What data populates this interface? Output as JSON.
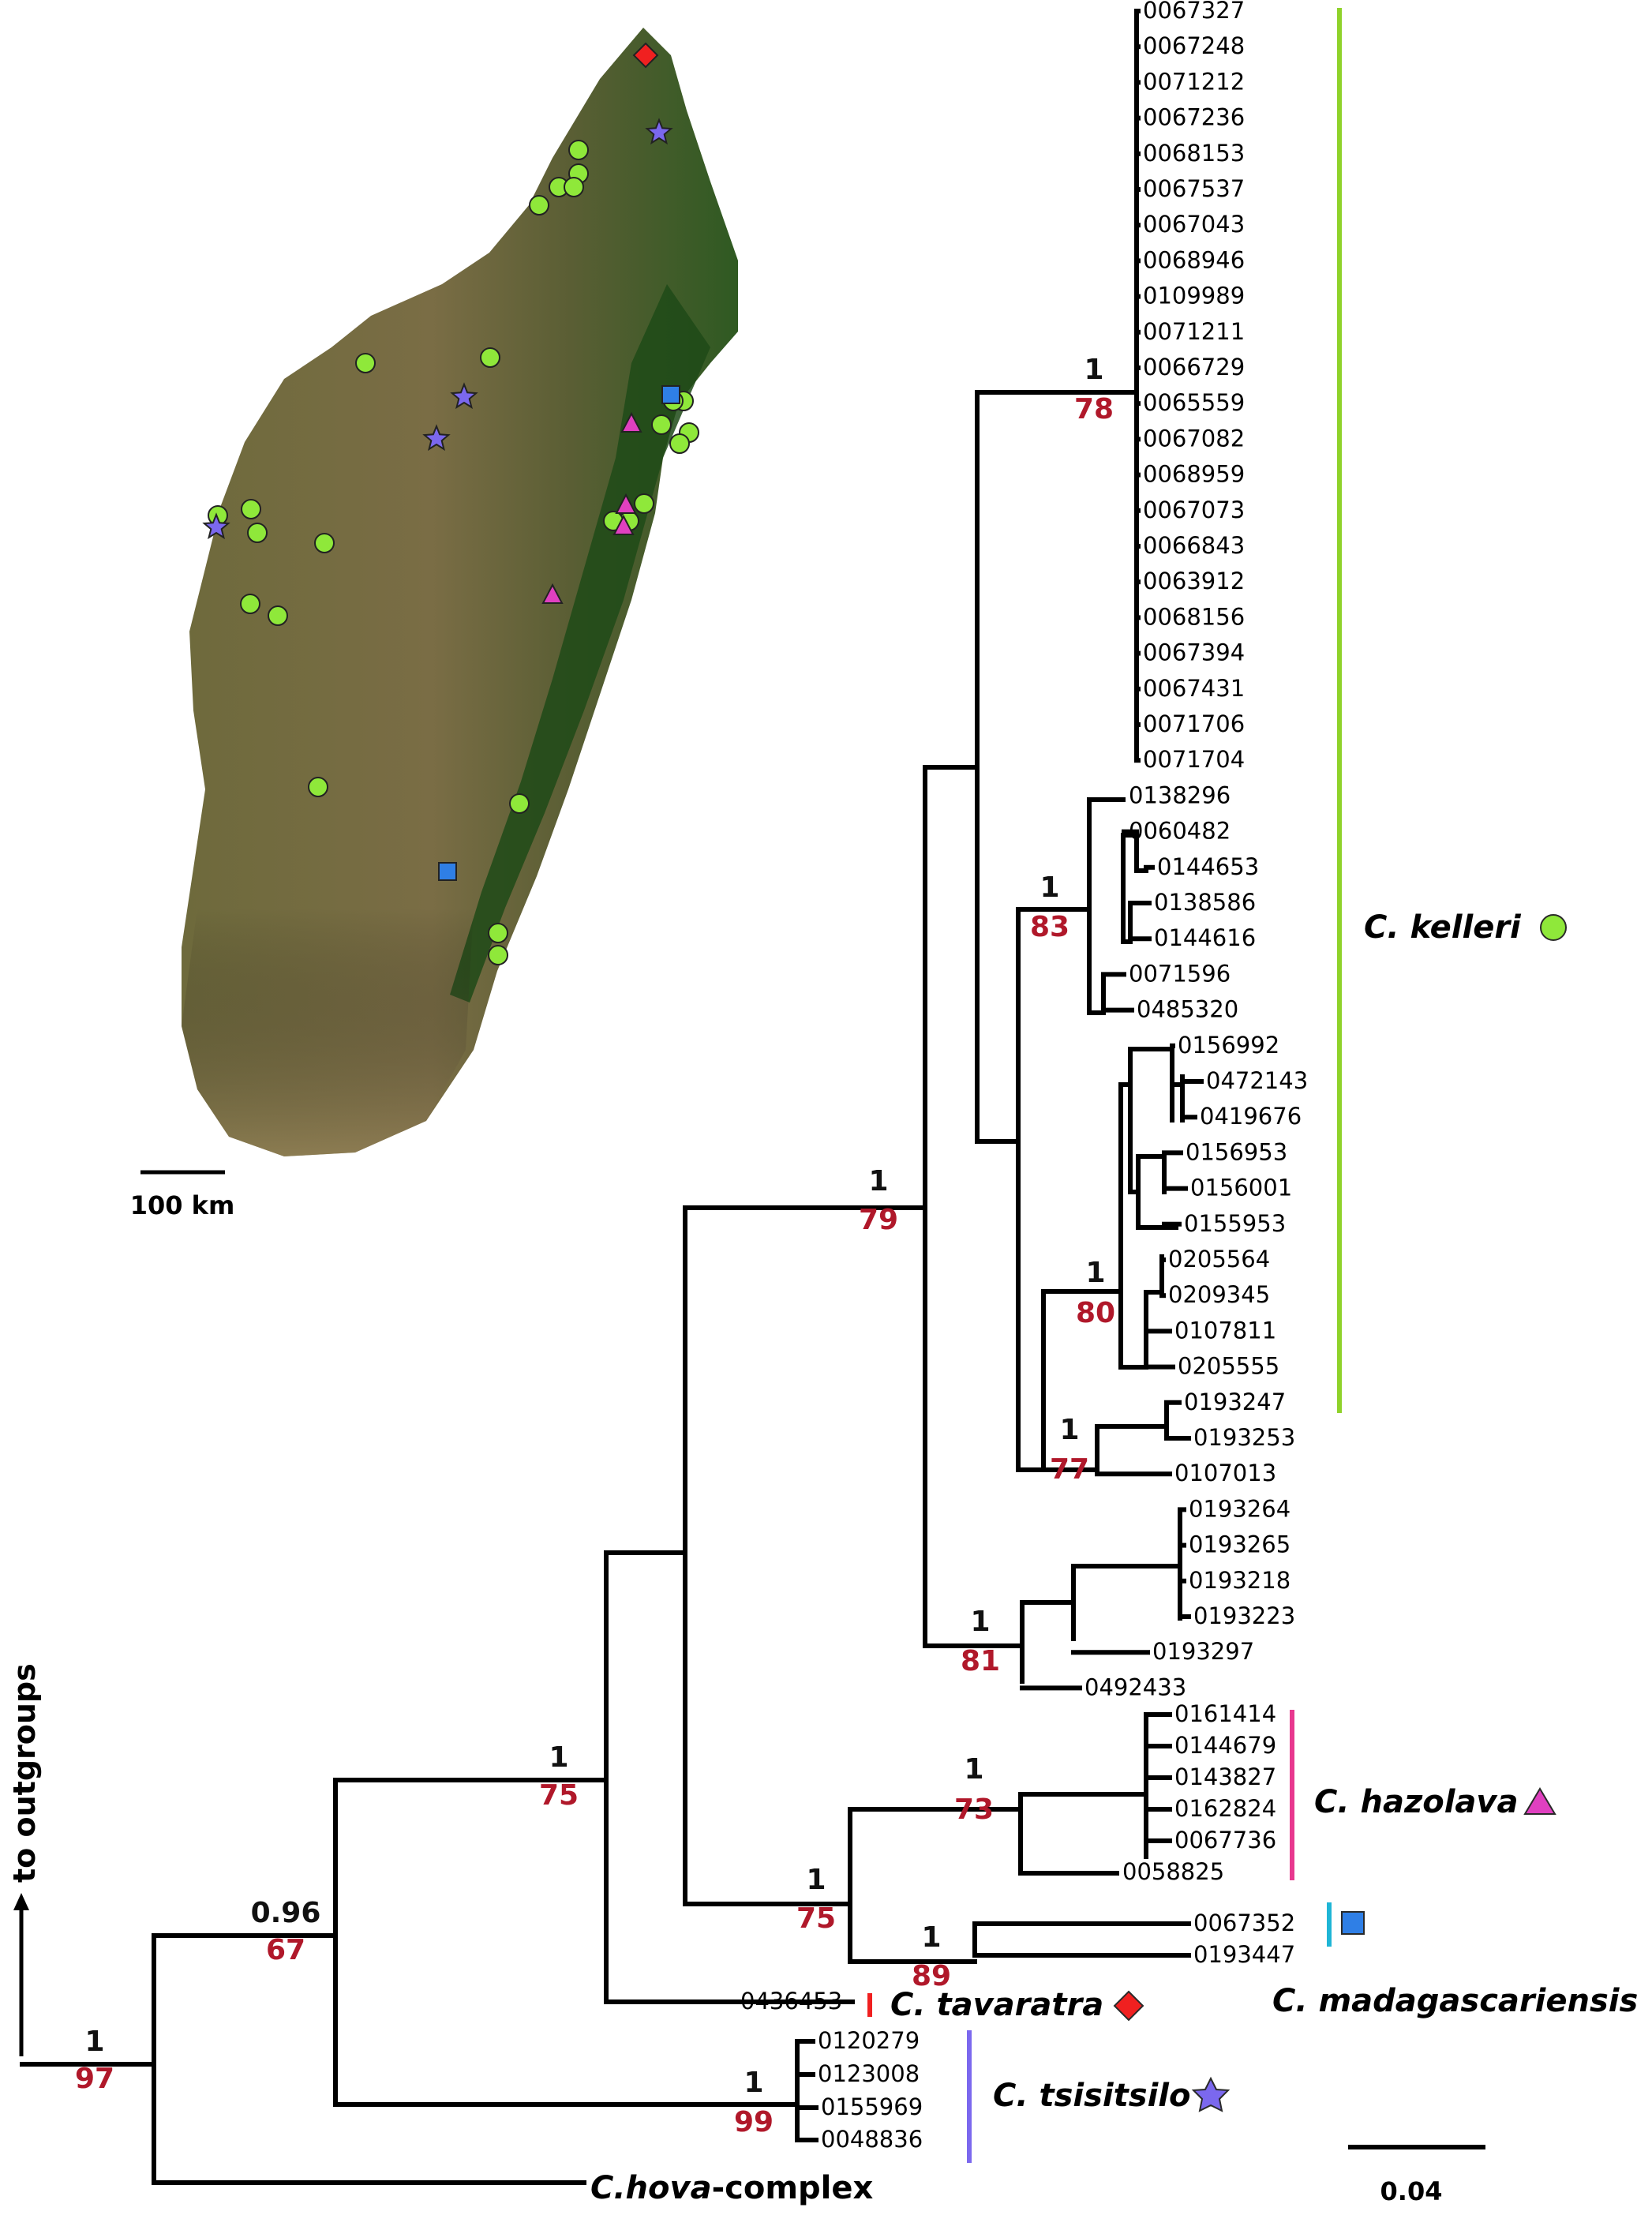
{
  "map": {
    "scale_label": "100 km",
    "colors": {
      "kelleri": "#8fe83a",
      "hazolava": "#e040c0",
      "madagascariensis": "#2f7fe6",
      "tavaratra": "#f02020",
      "tsisitsilo": "#7b68ee"
    }
  },
  "tree": {
    "outgroup_label": "to outgroups",
    "scale_label": "0.04",
    "tips": {
      "t1": "0067327",
      "t2": "0067248",
      "t3": "0071212",
      "t4": "0067236",
      "t5": "0068153",
      "t6": "0067537",
      "t7": "0067043",
      "t8": "0068946",
      "t9": "0109989",
      "t10": "0071211",
      "t11": "0066729",
      "t12": "0065559",
      "t13": "0067082",
      "t14": "0068959",
      "t15": "0067073",
      "t16": "0066843",
      "t17": "0063912",
      "t18": "0068156",
      "t19": "0067394",
      "t20": "0067431",
      "t21": "0071706",
      "t22": "0071704",
      "t23": "0138296",
      "t24": "0060482",
      "t25": "0144653",
      "t26": "0138586",
      "t27": "0144616",
      "t28": "0071596",
      "t29": "0485320",
      "t30": "0156992",
      "t31": "0472143",
      "t32": "0419676",
      "t33": "0156953",
      "t34": "0156001",
      "t35": "0155953",
      "t36": "0205564",
      "t37": "0209345",
      "t38": "0107811",
      "t39": "0205555",
      "t40": "0193247",
      "t41": "0193253",
      "t42": "0107013",
      "t43": "0193264",
      "t44": "0193265",
      "t45": "0193218",
      "t46": "0193223",
      "t47": "0193297",
      "t48": "0492433",
      "t49": "0161414",
      "t50": "0144679",
      "t51": "0143827",
      "t52": "0162824",
      "t53": "0067736",
      "t54": "0058825",
      "t55": "0067352",
      "t56": "0193447",
      "t57": "0436453",
      "t58": "0120279",
      "t59": "0123008",
      "t60": "0155969",
      "t61": "0048836"
    },
    "support": {
      "root": {
        "pp": "1",
        "bs": "97"
      },
      "n096": {
        "pp": "0.96",
        "bs": "67"
      },
      "n75a": {
        "pp": "1",
        "bs": "75"
      },
      "n79": {
        "pp": "1",
        "bs": "79"
      },
      "n78": {
        "pp": "1",
        "bs": "78"
      },
      "n83": {
        "pp": "1",
        "bs": "83"
      },
      "n80": {
        "pp": "1",
        "bs": "80"
      },
      "n77": {
        "pp": "1",
        "bs": "77"
      },
      "n81": {
        "pp": "1",
        "bs": "81"
      },
      "n75b": {
        "pp": "1",
        "bs": "75"
      },
      "n73": {
        "pp": "1",
        "bs": "73"
      },
      "n89": {
        "pp": "1",
        "bs": "89"
      },
      "n99": {
        "pp": "1",
        "bs": "99"
      }
    },
    "species": {
      "kelleri": "C. kelleri",
      "hazolava": "C. hazolava",
      "madagascariensis": "C. madagascariensis",
      "tavaratra": "C. tavaratra",
      "tsisitsilo": "C. tsisitsilo",
      "hova_prefix": "C.hova",
      "hova_suffix": "-complex"
    }
  }
}
